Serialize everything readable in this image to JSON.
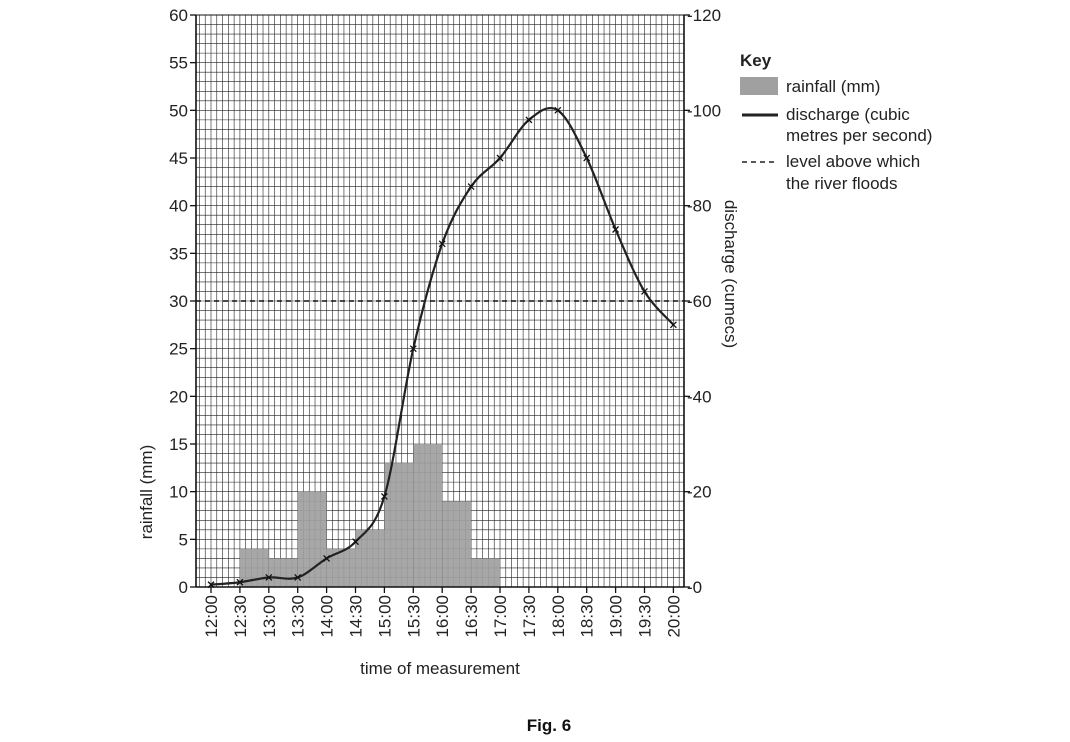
{
  "chart_data": {
    "type": "bar",
    "categories": [
      "12:00",
      "12:30",
      "13:00",
      "13:30",
      "14:00",
      "14:30",
      "15:00",
      "15:30",
      "16:00",
      "16:30",
      "17:00",
      "17:30",
      "18:00",
      "18:30",
      "19:00",
      "19:30",
      "20:00"
    ],
    "xlabel": "time of measurement",
    "ylabel_left": "rainfall (mm)",
    "ylabel_right": "discharge (cumecs)",
    "ylim_left": [
      0,
      60
    ],
    "ylim_right": [
      0,
      120
    ],
    "yticks_left": [
      "0",
      "5",
      "10",
      "15",
      "20",
      "25",
      "30",
      "35",
      "40",
      "45",
      "50",
      "55",
      "60"
    ],
    "yticks_right": [
      "0",
      "20",
      "40",
      "60",
      "80",
      "100",
      "120"
    ],
    "grid": true,
    "rainfall": {
      "name": "rainfall (mm)",
      "color": "#a0a0a0",
      "bars": [
        {
          "start": "12:30",
          "end": "13:00",
          "value": 4
        },
        {
          "start": "13:00",
          "end": "13:30",
          "value": 3
        },
        {
          "start": "13:30",
          "end": "14:00",
          "value": 10
        },
        {
          "start": "14:00",
          "end": "14:30",
          "value": 4
        },
        {
          "start": "14:30",
          "end": "15:00",
          "value": 6
        },
        {
          "start": "15:00",
          "end": "15:30",
          "value": 13
        },
        {
          "start": "15:30",
          "end": "16:00",
          "value": 15
        },
        {
          "start": "16:00",
          "end": "16:30",
          "value": 9
        },
        {
          "start": "16:30",
          "end": "17:00",
          "value": 3
        }
      ]
    },
    "discharge": {
      "name": "discharge (cubic metres per second)",
      "color": "#222222",
      "points": [
        {
          "x": "12:00",
          "y": 0.5
        },
        {
          "x": "12:30",
          "y": 1
        },
        {
          "x": "13:00",
          "y": 2
        },
        {
          "x": "13:30",
          "y": 2
        },
        {
          "x": "14:00",
          "y": 6
        },
        {
          "x": "14:30",
          "y": 9.5
        },
        {
          "x": "15:00",
          "y": 19
        },
        {
          "x": "15:30",
          "y": 50
        },
        {
          "x": "16:00",
          "y": 72
        },
        {
          "x": "16:30",
          "y": 84
        },
        {
          "x": "17:00",
          "y": 90
        },
        {
          "x": "17:30",
          "y": 98
        },
        {
          "x": "18:00",
          "y": 100
        },
        {
          "x": "18:30",
          "y": 90
        },
        {
          "x": "19:00",
          "y": 75
        },
        {
          "x": "19:30",
          "y": 62
        },
        {
          "x": "20:00",
          "y": 55
        }
      ]
    },
    "flood_level": {
      "value_left_axis": 30,
      "label": "level above which the river floods"
    }
  },
  "key": {
    "title": "Key",
    "rainfall_label": "rainfall (mm)",
    "discharge_label_line1": "discharge (cubic",
    "discharge_label_line2": "metres per second)",
    "flood_label_line1": "level above which",
    "flood_label_line2": "the river floods"
  },
  "caption": "Fig. 6"
}
